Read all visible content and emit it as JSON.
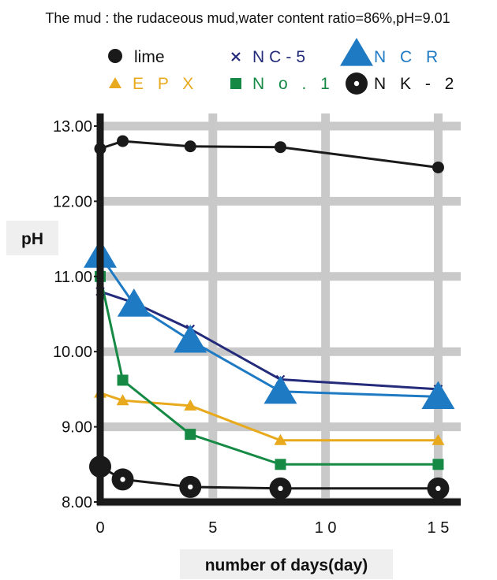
{
  "chart_data": {
    "type": "line",
    "title": "The mud : the rudaceous mud,water content ratio=86%,pH=9.01",
    "xlabel": "number of days(day)",
    "ylabel": "pH",
    "xlim": [
      0,
      16
    ],
    "ylim": [
      8,
      13
    ],
    "grid": true,
    "legend_position": "top",
    "x_ticks": [
      {
        "value": 0,
        "label": "0"
      },
      {
        "value": 5,
        "label": "5"
      },
      {
        "value": 10,
        "label": "1 0"
      },
      {
        "value": 15,
        "label": "1 5"
      }
    ],
    "y_ticks": [
      {
        "value": 8,
        "label": "8.00"
      },
      {
        "value": 9,
        "label": "9.00"
      },
      {
        "value": 10,
        "label": "10.00"
      },
      {
        "value": 11,
        "label": "11.00"
      },
      {
        "value": 12,
        "label": "12.00"
      },
      {
        "value": 13,
        "label": "13.00"
      }
    ],
    "series": [
      {
        "name": "lime",
        "legend_label": "lime",
        "color": "#1a1a1a",
        "marker": "circle",
        "x": [
          0,
          1,
          4,
          8,
          15
        ],
        "y": [
          12.7,
          12.8,
          12.73,
          12.72,
          12.45
        ]
      },
      {
        "name": "NC-5",
        "legend_label": "NC-5",
        "color": "#232b7a",
        "marker": "x",
        "x": [
          0,
          1.5,
          4,
          8,
          15
        ],
        "y": [
          10.8,
          10.65,
          10.3,
          9.63,
          9.5
        ]
      },
      {
        "name": "NCR",
        "legend_label": "N C R",
        "color": "#1f7ac4",
        "marker": "triangle-large",
        "x": [
          0,
          1.5,
          4,
          8,
          15
        ],
        "y": [
          11.28,
          10.63,
          10.15,
          9.47,
          9.4
        ]
      },
      {
        "name": "EPX",
        "legend_label": "E P X",
        "color": "#e8a91c",
        "marker": "triangle",
        "x": [
          0,
          1,
          4,
          8,
          15
        ],
        "y": [
          9.45,
          9.35,
          9.28,
          8.82,
          8.82
        ]
      },
      {
        "name": "No.1",
        "legend_label": "N o . 1",
        "color": "#168a45",
        "marker": "square",
        "x": [
          0,
          1,
          4,
          8,
          15
        ],
        "y": [
          11.0,
          9.62,
          8.9,
          8.5,
          8.5
        ]
      },
      {
        "name": "NK-2",
        "legend_label": "N K - 2",
        "color": "#1a1a1a",
        "marker": "target",
        "x": [
          0,
          1,
          4,
          8,
          15
        ],
        "y": [
          8.47,
          8.3,
          8.2,
          8.18,
          8.18
        ]
      }
    ]
  }
}
